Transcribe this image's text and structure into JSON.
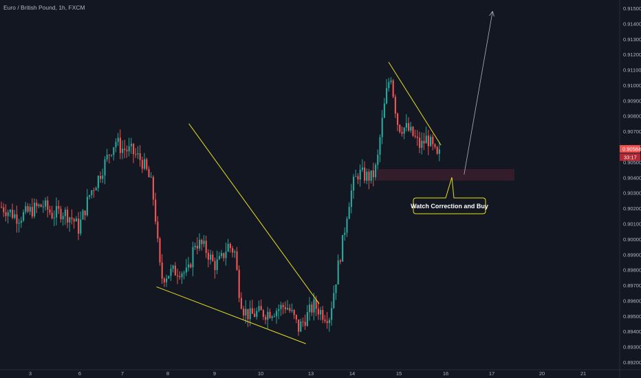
{
  "header": {
    "symbol_title": "Euro / British Pound, 1h, FXCM"
  },
  "colors": {
    "background": "#131722",
    "up": "#26a69a",
    "down": "#ef5350",
    "trendline": "#e8e020",
    "arrow": "#b2b5be",
    "zone": "#3a1f2c",
    "axis_text": "#b2b5be",
    "price_badge": "#ef5350",
    "timer_badge": "#b22833"
  },
  "price_axis": {
    "labels": [
      "0.91500",
      "0.91400",
      "0.91300",
      "0.91200",
      "0.91100",
      "0.91000",
      "0.90900",
      "0.90800",
      "0.90700",
      "0.90600",
      "0.90500",
      "0.90400",
      "0.90300",
      "0.90200",
      "0.90100",
      "0.90000",
      "0.89900",
      "0.89800",
      "0.89700",
      "0.89600",
      "0.89500",
      "0.89400",
      "0.89300",
      "0.89200"
    ],
    "current_price": "0.90584",
    "countdown": "33:17"
  },
  "time_axis": {
    "labels": [
      "3",
      "6",
      "7",
      "8",
      "9",
      "10",
      "13",
      "14",
      "15",
      "16",
      "17",
      "20",
      "21"
    ]
  },
  "annotation": {
    "callout_label": "Watch Correction and Buy"
  },
  "chart_data": {
    "type": "candlestick",
    "symbol": "Euro / British Pound",
    "timeframe": "1h",
    "source": "FXCM",
    "ylim": [
      0.8917,
      0.9155
    ],
    "x_ticks": [
      "3",
      "6",
      "7",
      "8",
      "9",
      "10",
      "13",
      "14",
      "15",
      "16",
      "17",
      "20",
      "21"
    ],
    "price_path": [
      [
        0,
        0.9021
      ],
      [
        12,
        0.9018
      ],
      [
        25,
        0.9014
      ],
      [
        38,
        0.9017
      ],
      [
        50,
        0.902
      ],
      [
        62,
        0.9022
      ],
      [
        75,
        0.9016
      ],
      [
        90,
        0.9018
      ],
      [
        105,
        0.9013
      ],
      [
        113,
        0.9007
      ],
      [
        120,
        0.9016
      ],
      [
        130,
        0.903
      ],
      [
        140,
        0.9038
      ],
      [
        150,
        0.9048
      ],
      [
        160,
        0.9058
      ],
      [
        167,
        0.9064
      ],
      [
        175,
        0.9059
      ],
      [
        190,
        0.9057
      ],
      [
        205,
        0.9051
      ],
      [
        213,
        0.9043
      ],
      [
        220,
        0.9034
      ],
      [
        226,
        0.901
      ],
      [
        230,
        0.8985
      ],
      [
        234,
        0.8975
      ],
      [
        245,
        0.8978
      ],
      [
        260,
        0.898
      ],
      [
        272,
        0.8977
      ],
      [
        282,
        0.8998
      ],
      [
        292,
        0.8996
      ],
      [
        300,
        0.8992
      ],
      [
        310,
        0.8983
      ],
      [
        320,
        0.8986
      ],
      [
        330,
        0.8996
      ],
      [
        340,
        0.8992
      ],
      [
        346,
        0.8968
      ],
      [
        352,
        0.8955
      ],
      [
        362,
        0.895
      ],
      [
        372,
        0.8952
      ],
      [
        385,
        0.8952
      ],
      [
        400,
        0.8954
      ],
      [
        415,
        0.8957
      ],
      [
        425,
        0.895
      ],
      [
        433,
        0.8942
      ],
      [
        445,
        0.895
      ],
      [
        455,
        0.8957
      ],
      [
        470,
        0.8951
      ],
      [
        478,
        0.895
      ],
      [
        485,
        0.8968
      ],
      [
        492,
        0.8986
      ],
      [
        498,
        0.9
      ],
      [
        505,
        0.9022
      ],
      [
        512,
        0.9035
      ],
      [
        520,
        0.9043
      ],
      [
        530,
        0.9041
      ],
      [
        540,
        0.904
      ],
      [
        547,
        0.9048
      ],
      [
        552,
        0.9068
      ],
      [
        557,
        0.9084
      ],
      [
        562,
        0.9098
      ],
      [
        567,
        0.9108
      ],
      [
        572,
        0.909
      ],
      [
        578,
        0.9073
      ],
      [
        590,
        0.9072
      ],
      [
        600,
        0.9067
      ],
      [
        610,
        0.906
      ],
      [
        620,
        0.9066
      ],
      [
        628,
        0.9059
      ],
      [
        635,
        0.9052
      ],
      [
        641,
        0.9058
      ]
    ],
    "wedge_1": {
      "upper": [
        [
          8,
          0.9075
        ],
        [
          13,
          0.8956
        ]
      ],
      "lower": [
        [
          8,
          0.897
        ],
        [
          13,
          0.8932
        ]
      ]
    },
    "wedge_2": {
      "upper": [
        [
          14.8,
          0.9115
        ],
        [
          16,
          0.906
        ]
      ]
    },
    "support_zone": [
      0.904,
      0.9045
    ],
    "projection_arrow": {
      "from": [
        16.4,
        0.9042
      ],
      "to": [
        17,
        0.9146
      ]
    },
    "annotations": [
      "Watch Correction and Buy"
    ],
    "last_price": 0.90584
  }
}
